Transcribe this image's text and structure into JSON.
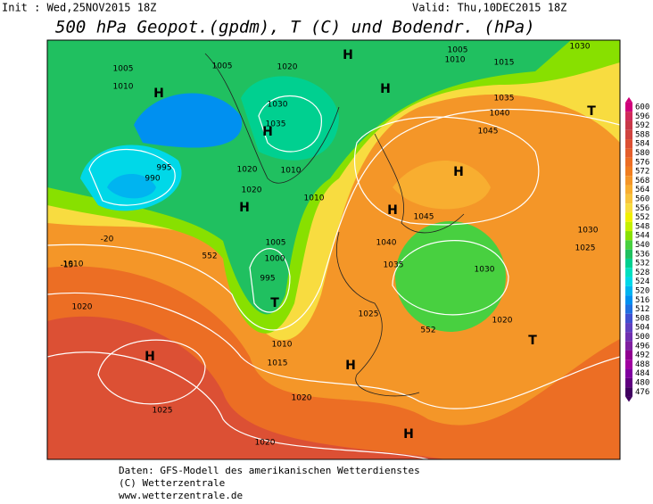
{
  "header": {
    "init": "Init : Wed,25NOV2015 18Z",
    "valid": "Valid: Thu,10DEC2015 18Z",
    "title": "500 hPa Geopot.(gpdm), T (C) und Bodendr. (hPa)"
  },
  "legend": {
    "labels": [
      600,
      596,
      592,
      588,
      584,
      580,
      576,
      572,
      568,
      564,
      560,
      556,
      552,
      548,
      544,
      540,
      536,
      532,
      528,
      524,
      520,
      516,
      512,
      508,
      504,
      500,
      496,
      492,
      488,
      484,
      480,
      476
    ],
    "colors": [
      "#d0007a",
      "#d02a5a",
      "#c83848",
      "#d04440",
      "#dc5034",
      "#e45e2c",
      "#ec6e24",
      "#f07e20",
      "#f49628",
      "#f8ae30",
      "#f8c43c",
      "#f8dc40",
      "#f0f000",
      "#c4f000",
      "#88e000",
      "#48d040",
      "#20c060",
      "#00d090",
      "#00e0c0",
      "#00d8e8",
      "#00b4f0",
      "#0090f0",
      "#2070e0",
      "#4050d0",
      "#6040c0",
      "#7030b0",
      "#8020a0",
      "#900090",
      "#a000a0",
      "#8000a0",
      "#600080",
      "#400060"
    ]
  },
  "map_labels": [
    "1005",
    "1010",
    "H",
    "1005",
    "1020",
    "H",
    "1005",
    "1010",
    "1015",
    "1030",
    "H",
    "1035",
    "1040",
    "T",
    "H",
    "1030",
    "1035",
    "1045",
    "995",
    "990",
    "H",
    "1020",
    "1010",
    "H",
    "1020",
    "1010",
    "1045",
    "H",
    "1040",
    "1005",
    "1000",
    "995",
    "T",
    "1035",
    "1030",
    "1025",
    "1020",
    "T",
    "1010",
    "1015",
    "H",
    "H",
    "1020",
    "1025",
    "H",
    "1020",
    "1025",
    "1030",
    "1010",
    "1020",
    "-20",
    "-15",
    "552",
    "552"
  ],
  "footer": [
    "Daten: GFS-Modell des amerikanischen Wetterdienstes",
    "(C) Wetterzentrale",
    "www.wetterzentrale.de"
  ]
}
